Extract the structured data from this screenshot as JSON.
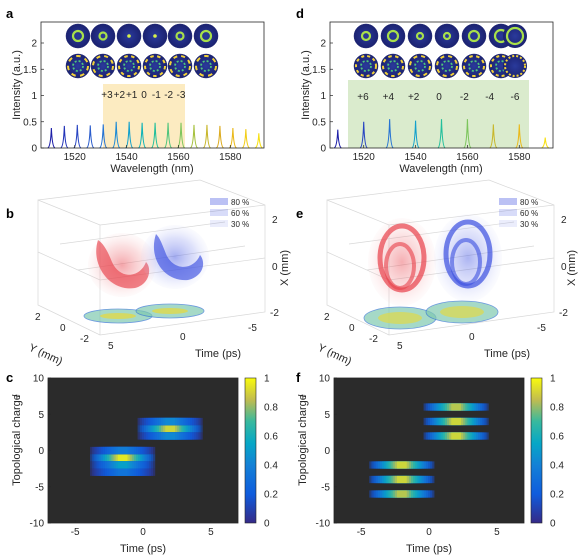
{
  "panels": {
    "a": "a",
    "b": "b",
    "c": "c",
    "d": "d",
    "e": "e",
    "f": "f"
  },
  "spectra": {
    "xlabel": "Wavelength (nm)",
    "ylabel": "Intensity (a.u.)",
    "x_ticks": [
      "1520",
      "1540",
      "1560",
      "1580"
    ],
    "y_ticks": [
      "0",
      "0.5",
      "1",
      "1.5",
      "2"
    ],
    "left_mode_labels": [
      "+3",
      "+2",
      "+1",
      "0",
      "-1",
      "-2",
      "-3"
    ],
    "right_mode_labels": [
      "+6",
      "+4",
      "+2",
      "0",
      "-2",
      "-4",
      "-6"
    ],
    "highlight_left": "#fce8b6",
    "highlight_right": "#d6e9c8"
  },
  "isosurface": {
    "legend": [
      "80 %",
      "60 %",
      "30 %"
    ],
    "x_axis_label": "X (mm)",
    "x_ticks": [
      "2",
      "0",
      "-2"
    ],
    "time_label": "Time (ps)",
    "time_ticks": [
      "5",
      "0",
      "-5"
    ],
    "y_label": "Y (mm)",
    "y_ticks": [
      "2",
      "0",
      "-2"
    ],
    "red": "#e8404a",
    "blue": "#3b4ee0"
  },
  "maps": {
    "xlabel": "Time (ps)",
    "ylabel": "Topological charge",
    "ylabel_symbol": "l",
    "x_ticks": [
      "-5",
      "0",
      "5"
    ],
    "y_ticks": [
      "10",
      "5",
      "0",
      "-5",
      "-10"
    ],
    "colorbar_ticks": [
      "1",
      "0.8",
      "0.6",
      "0.4",
      "0.2",
      "0"
    ],
    "background": "#2b2b2b"
  },
  "chart_data": [
    {
      "type": "line",
      "panel": "a",
      "xlabel": "Wavelength (nm)",
      "ylabel": "Intensity (a.u.)",
      "xlim": [
        1507,
        1593
      ],
      "ylim": [
        0,
        2.4
      ],
      "peak_positions": [
        1511,
        1516,
        1521,
        1526,
        1531,
        1536,
        1541,
        1546,
        1551,
        1556,
        1561,
        1566,
        1571,
        1576,
        1581,
        1586,
        1591
      ],
      "peak_values": [
        0.38,
        0.42,
        0.44,
        0.43,
        0.45,
        0.5,
        0.5,
        0.48,
        0.48,
        0.48,
        0.48,
        0.44,
        0.44,
        0.42,
        0.38,
        0.36,
        0.28
      ],
      "highlight_range": [
        1531,
        1563
      ]
    },
    {
      "type": "line",
      "panel": "d",
      "xlabel": "Wavelength (nm)",
      "ylabel": "Intensity (a.u.)",
      "xlim": [
        1507,
        1593
      ],
      "ylim": [
        0,
        2.4
      ],
      "peak_positions": [
        1510,
        1520,
        1530,
        1540,
        1550,
        1560,
        1570,
        1580,
        1590
      ],
      "peak_values": [
        0.35,
        0.5,
        0.55,
        0.52,
        0.55,
        0.55,
        0.45,
        0.45,
        0.2
      ],
      "highlight_range": [
        1514,
        1586
      ]
    },
    {
      "type": "heatmap",
      "panel": "c",
      "xlabel": "Time (ps)",
      "ylabel": "Topological charge",
      "xlim": [
        -7,
        7
      ],
      "ylim": [
        -10,
        10
      ],
      "colorbar": [
        0,
        1
      ],
      "blobs": [
        {
          "t": -1.5,
          "l": -1,
          "peak": 1.0
        },
        {
          "t": -1.5,
          "l": -2,
          "peak": 0.55
        },
        {
          "t": -1.5,
          "l": 0,
          "peak": 0.4
        },
        {
          "t": -1.5,
          "l": -3,
          "peak": 0.35
        },
        {
          "t": 2.0,
          "l": 3,
          "peak": 0.95
        },
        {
          "t": 2.0,
          "l": 2,
          "peak": 0.45
        },
        {
          "t": 2.0,
          "l": 4,
          "peak": 0.45
        }
      ]
    },
    {
      "type": "heatmap",
      "panel": "f",
      "xlabel": "Time (ps)",
      "ylabel": "Topological charge",
      "xlim": [
        -7,
        7
      ],
      "ylim": [
        -10,
        10
      ],
      "colorbar": [
        0,
        1
      ],
      "blobs": [
        {
          "t": -2.0,
          "l": -2,
          "peak": 0.95
        },
        {
          "t": -2.0,
          "l": -4,
          "peak": 0.95
        },
        {
          "t": -2.0,
          "l": -6,
          "peak": 0.9
        },
        {
          "t": 2.0,
          "l": 2,
          "peak": 0.95
        },
        {
          "t": 2.0,
          "l": 4,
          "peak": 0.95
        },
        {
          "t": 2.0,
          "l": 6,
          "peak": 0.9
        }
      ]
    }
  ]
}
